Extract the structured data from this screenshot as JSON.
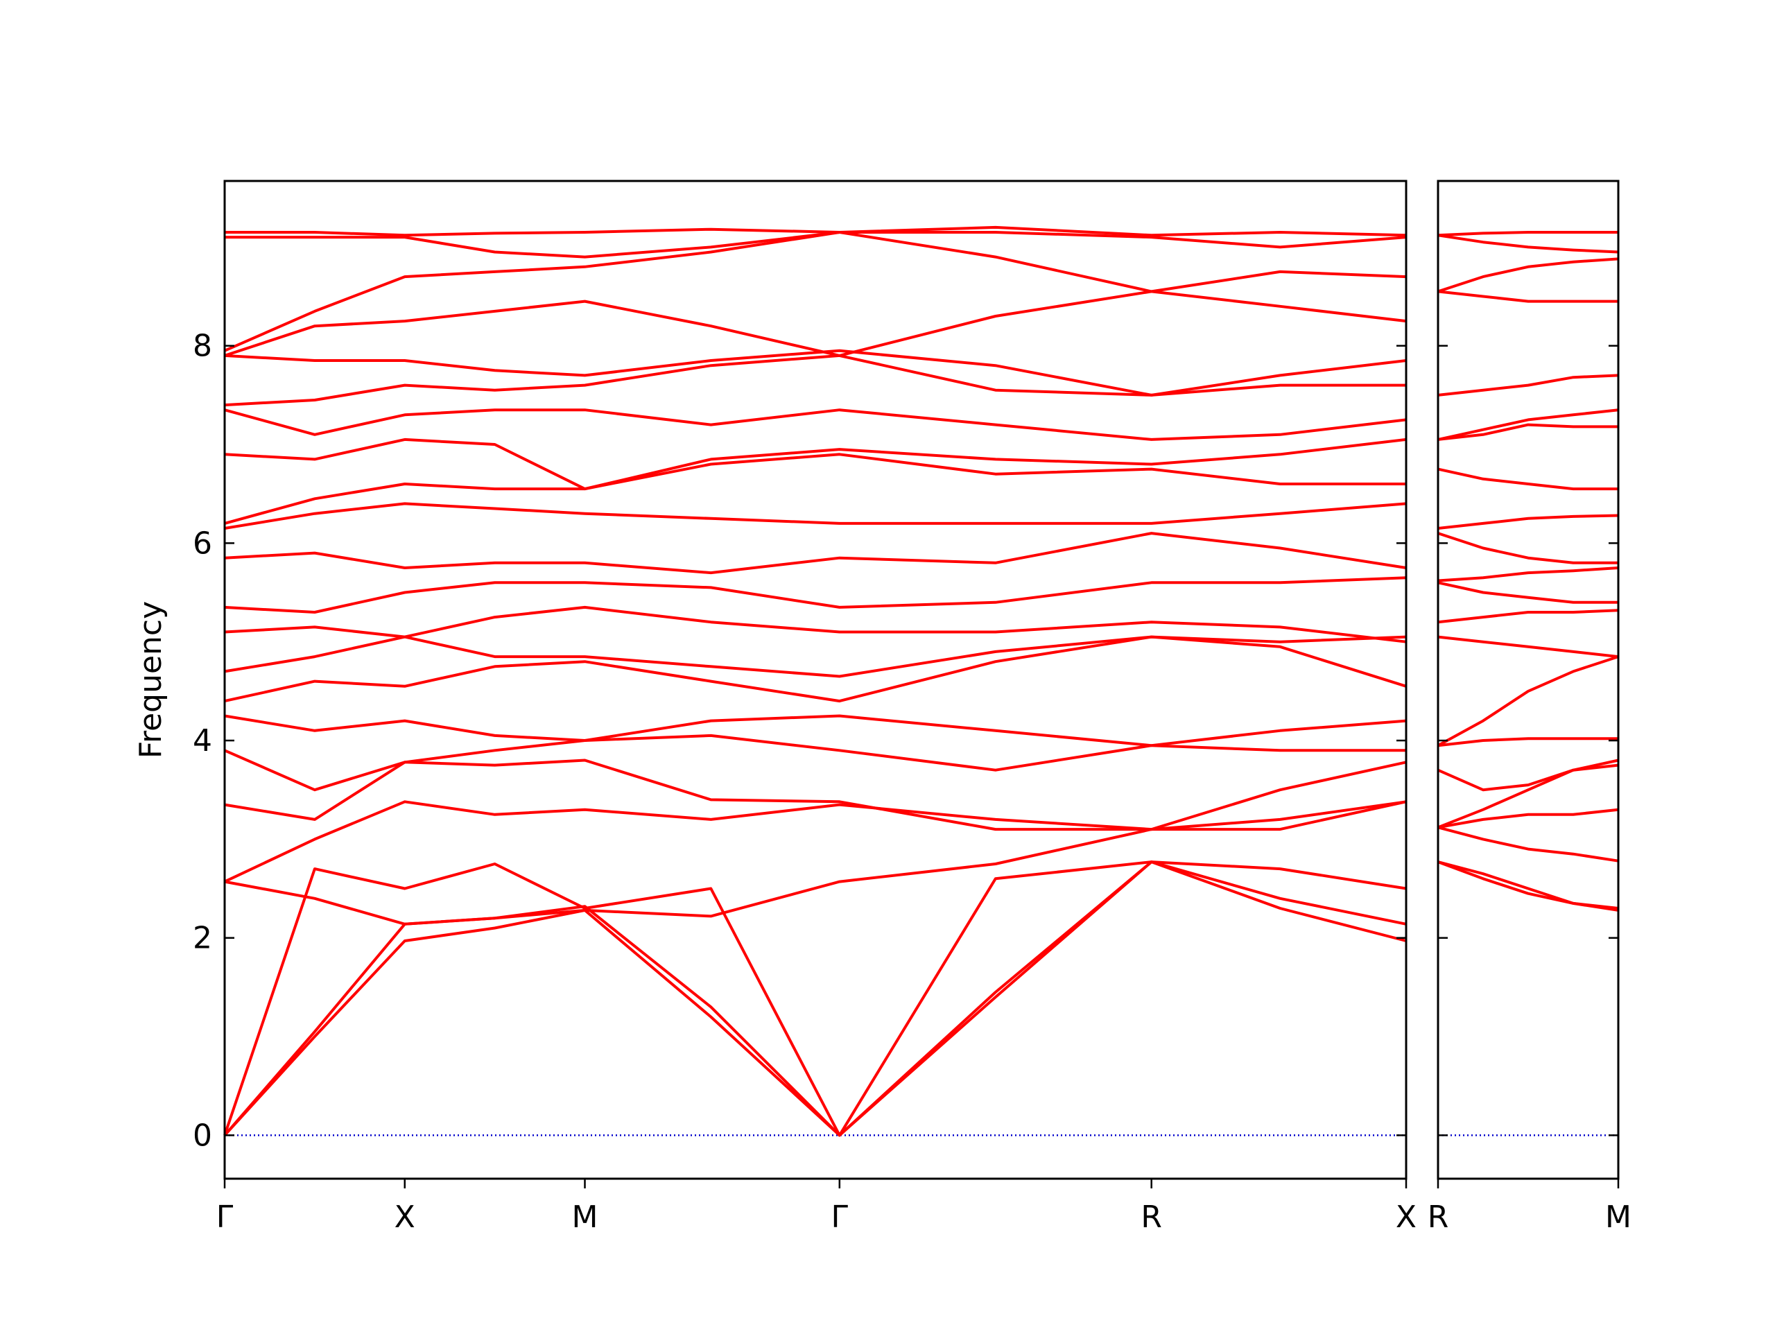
{
  "chart_data": [
    {
      "type": "line",
      "ylabel": "Frequency",
      "color": "#ff0000",
      "x": [
        0,
        0.25,
        0.5,
        0.75,
        1.0,
        1.35,
        1.707,
        2.14,
        2.573,
        2.93,
        3.28
      ],
      "bands": [
        [
          0,
          1.0,
          1.97,
          2.1,
          2.28,
          1.2,
          0,
          1.4,
          2.77,
          2.3,
          1.97
        ],
        [
          0,
          1.05,
          2.14,
          2.2,
          2.32,
          1.3,
          0,
          1.45,
          2.77,
          2.4,
          2.14
        ],
        [
          0,
          2.7,
          2.5,
          2.75,
          2.3,
          2.5,
          0,
          2.6,
          2.77,
          2.7,
          2.5
        ],
        [
          2.57,
          2.4,
          2.14,
          2.2,
          2.28,
          2.22,
          2.57,
          2.75,
          3.1,
          3.1,
          3.38
        ],
        [
          2.57,
          3.0,
          3.38,
          3.25,
          3.3,
          3.2,
          3.35,
          3.2,
          3.1,
          3.2,
          3.38
        ],
        [
          3.35,
          3.2,
          3.78,
          3.75,
          3.8,
          3.4,
          3.38,
          3.1,
          3.1,
          3.5,
          3.78
        ],
        [
          3.9,
          3.5,
          3.78,
          3.9,
          4.0,
          4.05,
          3.9,
          3.7,
          3.95,
          3.9,
          3.9
        ],
        [
          4.25,
          4.1,
          4.2,
          4.05,
          4.0,
          4.2,
          4.25,
          4.1,
          3.95,
          4.1,
          4.2
        ],
        [
          4.4,
          4.6,
          4.55,
          4.75,
          4.8,
          4.6,
          4.4,
          4.8,
          5.05,
          4.95,
          4.55
        ],
        [
          4.7,
          4.85,
          5.05,
          4.85,
          4.85,
          4.75,
          4.65,
          4.9,
          5.05,
          5.0,
          5.05
        ],
        [
          5.1,
          5.15,
          5.05,
          5.25,
          5.35,
          5.2,
          5.1,
          5.1,
          5.2,
          5.15,
          5.0
        ],
        [
          5.35,
          5.3,
          5.5,
          5.6,
          5.6,
          5.55,
          5.35,
          5.4,
          5.6,
          5.6,
          5.65
        ],
        [
          5.85,
          5.9,
          5.75,
          5.8,
          5.8,
          5.7,
          5.85,
          5.8,
          6.1,
          5.95,
          5.75
        ],
        [
          6.15,
          6.3,
          6.4,
          6.35,
          6.3,
          6.25,
          6.2,
          6.2,
          6.2,
          6.3,
          6.4
        ],
        [
          6.2,
          6.45,
          6.6,
          6.55,
          6.55,
          6.8,
          6.9,
          6.7,
          6.75,
          6.6,
          6.6
        ],
        [
          6.9,
          6.85,
          7.05,
          7.0,
          6.55,
          6.85,
          6.95,
          6.85,
          6.8,
          6.9,
          7.05
        ],
        [
          7.35,
          7.1,
          7.3,
          7.35,
          7.35,
          7.2,
          7.35,
          7.2,
          7.05,
          7.1,
          7.25
        ],
        [
          7.4,
          7.45,
          7.6,
          7.55,
          7.6,
          7.8,
          7.9,
          7.55,
          7.5,
          7.6,
          7.6
        ],
        [
          7.9,
          7.85,
          7.85,
          7.75,
          7.7,
          7.85,
          7.95,
          7.8,
          7.5,
          7.7,
          7.85
        ],
        [
          7.9,
          8.2,
          8.25,
          8.35,
          8.45,
          8.2,
          7.9,
          8.3,
          8.55,
          8.4,
          8.25
        ],
        [
          7.95,
          8.35,
          8.7,
          8.75,
          8.8,
          8.95,
          9.15,
          8.9,
          8.55,
          8.75,
          8.7
        ],
        [
          9.1,
          9.1,
          9.1,
          8.95,
          8.9,
          9.0,
          9.15,
          9.15,
          9.1,
          9.0,
          9.1
        ],
        [
          9.15,
          9.15,
          9.12,
          9.14,
          9.15,
          9.18,
          9.15,
          9.2,
          9.12,
          9.15,
          9.12
        ]
      ],
      "xlim": [
        0,
        3.28
      ],
      "ylim": [
        -0.44,
        9.67
      ],
      "xticks": [
        {
          "value": 0,
          "label": "Γ"
        },
        {
          "value": 0.5,
          "label": "X"
        },
        {
          "value": 1.0,
          "label": "M"
        },
        {
          "value": 1.707,
          "label": "Γ"
        },
        {
          "value": 2.573,
          "label": "R"
        },
        {
          "value": 3.28,
          "label": "X"
        }
      ],
      "yticks": [
        0,
        2,
        4,
        6,
        8
      ],
      "ytick_labels": true,
      "hline": 0,
      "hline_color": "#0000cc"
    },
    {
      "type": "line",
      "color": "#ff0000",
      "x": [
        0,
        0.125,
        0.25,
        0.375,
        0.5
      ],
      "bands": [
        [
          2.77,
          2.6,
          2.45,
          2.35,
          2.28
        ],
        [
          2.77,
          2.65,
          2.5,
          2.35,
          2.3
        ],
        [
          3.12,
          3.0,
          2.9,
          2.85,
          2.78
        ],
        [
          3.12,
          3.2,
          3.25,
          3.25,
          3.3
        ],
        [
          3.12,
          3.3,
          3.5,
          3.7,
          3.8
        ],
        [
          3.7,
          3.5,
          3.55,
          3.7,
          3.75
        ],
        [
          3.95,
          4.2,
          4.5,
          4.7,
          4.85
        ],
        [
          3.95,
          4.0,
          4.02,
          4.02,
          4.02
        ],
        [
          5.05,
          5.0,
          4.95,
          4.9,
          4.85
        ],
        [
          5.2,
          5.25,
          5.3,
          5.3,
          5.32
        ],
        [
          5.6,
          5.5,
          5.45,
          5.4,
          5.4
        ],
        [
          5.62,
          5.65,
          5.7,
          5.72,
          5.75
        ],
        [
          6.1,
          5.95,
          5.85,
          5.8,
          5.8
        ],
        [
          6.15,
          6.2,
          6.25,
          6.27,
          6.28
        ],
        [
          6.75,
          6.65,
          6.6,
          6.55,
          6.55
        ],
        [
          7.05,
          7.1,
          7.2,
          7.18,
          7.18
        ],
        [
          7.05,
          7.15,
          7.25,
          7.3,
          7.35
        ],
        [
          7.5,
          7.55,
          7.6,
          7.68,
          7.7
        ],
        [
          8.55,
          8.5,
          8.45,
          8.45,
          8.45
        ],
        [
          8.55,
          8.7,
          8.8,
          8.85,
          8.88
        ],
        [
          9.12,
          9.05,
          9.0,
          8.97,
          8.95
        ],
        [
          9.12,
          9.14,
          9.15,
          9.15,
          9.15
        ]
      ],
      "xlim": [
        0,
        0.5
      ],
      "ylim": [
        -0.44,
        9.67
      ],
      "xticks": [
        {
          "value": 0,
          "label": "R"
        },
        {
          "value": 0.5,
          "label": "M"
        }
      ],
      "yticks": [
        0,
        2,
        4,
        6,
        8
      ],
      "ytick_labels": false,
      "hline": 0,
      "hline_color": "#0000cc"
    }
  ]
}
